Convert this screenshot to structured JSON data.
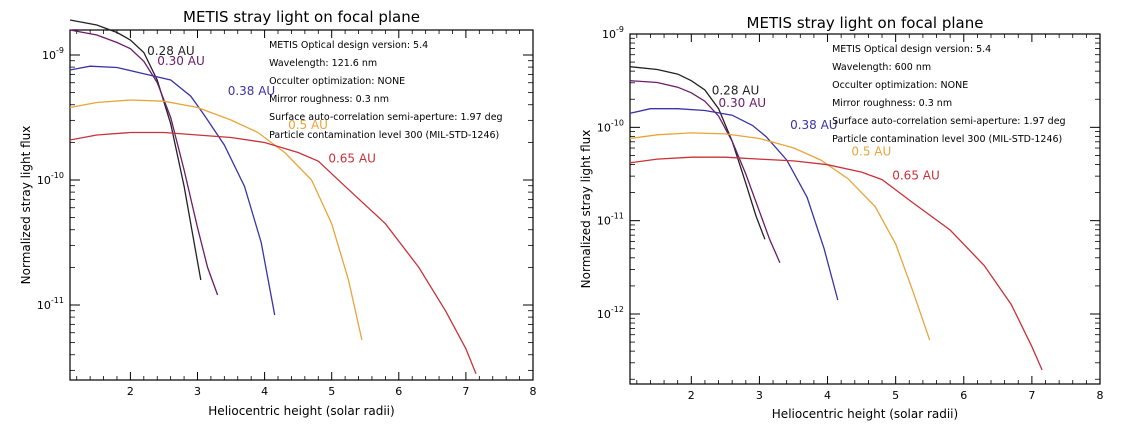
{
  "chart_data": [
    {
      "type": "line",
      "title": "METIS stray light on focal plane",
      "xlabel": "Heliocentric height (solar radii)",
      "ylabel": "Normalized stray light flux",
      "y_scale": "log",
      "xlim": [
        1.1,
        8
      ],
      "ylim_exp": [
        -11.6,
        -8.8
      ],
      "x_ticks": [
        "2",
        "3",
        "4",
        "5",
        "6",
        "7",
        "8"
      ],
      "y_ticks": [
        {
          "exp": -9,
          "mant": "10",
          "sup": "-9"
        },
        {
          "exp": -10,
          "mant": "10",
          "sup": "-10"
        },
        {
          "exp": -11,
          "mant": "10",
          "sup": "-11"
        }
      ],
      "annotations": [
        "METIS Optical design version: 5.4",
        "Wavelength: 121.6 nm",
        "Occulter optimization: NONE",
        "Mirror roughness: 0.3 nm",
        "Surface auto-correlation semi-aperture: 1.97 deg",
        "Particle contamination level 300 (MIL-STD-1246)"
      ],
      "series": [
        {
          "name": "0.28 AU",
          "color": "#222222",
          "label_at": [
            2.25,
            -9.0
          ],
          "points": [
            [
              1.1,
              -8.72
            ],
            [
              1.5,
              -8.76
            ],
            [
              1.8,
              -8.82
            ],
            [
              2.0,
              -8.88
            ],
            [
              2.2,
              -8.98
            ],
            [
              2.4,
              -9.2
            ],
            [
              2.6,
              -9.55
            ],
            [
              2.8,
              -10.05
            ],
            [
              2.95,
              -10.5
            ],
            [
              3.05,
              -10.8
            ]
          ]
        },
        {
          "name": "0.30 AU",
          "color": "#6a1b6a",
          "label_at": [
            2.4,
            -9.08
          ],
          "points": [
            [
              1.1,
              -8.8
            ],
            [
              1.5,
              -8.84
            ],
            [
              1.8,
              -8.9
            ],
            [
              2.0,
              -8.95
            ],
            [
              2.2,
              -9.05
            ],
            [
              2.4,
              -9.22
            ],
            [
              2.6,
              -9.5
            ],
            [
              2.8,
              -9.92
            ],
            [
              3.0,
              -10.38
            ],
            [
              3.15,
              -10.7
            ],
            [
              3.3,
              -10.92
            ]
          ]
        },
        {
          "name": "0.38 AU",
          "color": "#3a33a6",
          "label_at": [
            3.45,
            -9.32
          ],
          "points": [
            [
              1.1,
              -9.12
            ],
            [
              1.4,
              -9.09
            ],
            [
              1.8,
              -9.1
            ],
            [
              2.2,
              -9.15
            ],
            [
              2.6,
              -9.2
            ],
            [
              2.9,
              -9.33
            ],
            [
              3.1,
              -9.48
            ],
            [
              3.4,
              -9.72
            ],
            [
              3.7,
              -10.05
            ],
            [
              3.95,
              -10.5
            ],
            [
              4.15,
              -11.08
            ]
          ]
        },
        {
          "name": "0.5 AU",
          "color": "#e8a53a",
          "label_at": [
            4.35,
            -9.59
          ],
          "points": [
            [
              1.1,
              -9.42
            ],
            [
              1.5,
              -9.38
            ],
            [
              2.0,
              -9.36
            ],
            [
              2.5,
              -9.37
            ],
            [
              3.0,
              -9.42
            ],
            [
              3.5,
              -9.52
            ],
            [
              3.9,
              -9.62
            ],
            [
              4.3,
              -9.78
            ],
            [
              4.7,
              -10.0
            ],
            [
              5.0,
              -10.35
            ],
            [
              5.25,
              -10.8
            ],
            [
              5.45,
              -11.28
            ]
          ]
        },
        {
          "name": "0.65 AU",
          "color": "#c8323a",
          "label_at": [
            4.95,
            -9.86
          ],
          "points": [
            [
              1.1,
              -9.68
            ],
            [
              1.5,
              -9.64
            ],
            [
              2.0,
              -9.62
            ],
            [
              2.5,
              -9.62
            ],
            [
              3.0,
              -9.64
            ],
            [
              3.5,
              -9.66
            ],
            [
              4.0,
              -9.7
            ],
            [
              4.5,
              -9.78
            ],
            [
              4.8,
              -9.85
            ],
            [
              5.2,
              -10.05
            ],
            [
              5.8,
              -10.35
            ],
            [
              6.3,
              -10.7
            ],
            [
              6.7,
              -11.05
            ],
            [
              7.0,
              -11.35
            ],
            [
              7.15,
              -11.55
            ]
          ]
        }
      ]
    },
    {
      "type": "line",
      "title": "METIS stray light on focal plane",
      "xlabel": "Heliocentric height (solar radii)",
      "ylabel": "Normalized stray light flux",
      "y_scale": "log",
      "xlim": [
        1.1,
        8
      ],
      "ylim_exp": [
        -12.75,
        -9.0
      ],
      "x_ticks": [
        "2",
        "3",
        "4",
        "5",
        "6",
        "7",
        "8"
      ],
      "y_ticks": [
        {
          "exp": -9,
          "mant": "10",
          "sup": "-9"
        },
        {
          "exp": -10,
          "mant": "10",
          "sup": "-10"
        },
        {
          "exp": -11,
          "mant": "10",
          "sup": "-11"
        },
        {
          "exp": -12,
          "mant": "10",
          "sup": "-12"
        }
      ],
      "annotations": [
        "METIS Optical design version: 5.4",
        "Wavelength: 600 nm",
        "Occulter optimization: NONE",
        "Mirror roughness: 0.3 nm",
        "Surface auto-correlation semi-aperture: 1.97 deg",
        "Particle contamination level 300 (MIL-STD-1246)"
      ],
      "series": [
        {
          "name": "0.28 AU",
          "color": "#222222",
          "label_at": [
            2.3,
            -9.65
          ],
          "points": [
            [
              1.1,
              -9.35
            ],
            [
              1.5,
              -9.38
            ],
            [
              1.8,
              -9.43
            ],
            [
              2.0,
              -9.5
            ],
            [
              2.2,
              -9.6
            ],
            [
              2.4,
              -9.8
            ],
            [
              2.6,
              -10.15
            ],
            [
              2.8,
              -10.6
            ],
            [
              2.95,
              -10.95
            ],
            [
              3.08,
              -11.2
            ]
          ]
        },
        {
          "name": "0.30 AU",
          "color": "#6a1b6a",
          "label_at": [
            2.4,
            -9.78
          ],
          "points": [
            [
              1.1,
              -9.5
            ],
            [
              1.5,
              -9.52
            ],
            [
              1.8,
              -9.57
            ],
            [
              2.0,
              -9.63
            ],
            [
              2.2,
              -9.72
            ],
            [
              2.4,
              -9.88
            ],
            [
              2.6,
              -10.15
            ],
            [
              2.8,
              -10.5
            ],
            [
              3.0,
              -10.9
            ],
            [
              3.15,
              -11.2
            ],
            [
              3.3,
              -11.45
            ]
          ]
        },
        {
          "name": "0.38 AU",
          "color": "#3a33a6",
          "label_at": [
            3.45,
            -10.02
          ],
          "points": [
            [
              1.1,
              -9.85
            ],
            [
              1.4,
              -9.8
            ],
            [
              1.8,
              -9.8
            ],
            [
              2.2,
              -9.82
            ],
            [
              2.6,
              -9.87
            ],
            [
              2.9,
              -9.98
            ],
            [
              3.1,
              -10.1
            ],
            [
              3.4,
              -10.35
            ],
            [
              3.7,
              -10.75
            ],
            [
              3.95,
              -11.3
            ],
            [
              4.15,
              -11.85
            ]
          ]
        },
        {
          "name": "0.5 AU",
          "color": "#e8a53a",
          "label_at": [
            4.35,
            -10.3
          ],
          "points": [
            [
              1.1,
              -10.12
            ],
            [
              1.5,
              -10.08
            ],
            [
              2.0,
              -10.06
            ],
            [
              2.5,
              -10.07
            ],
            [
              3.0,
              -10.12
            ],
            [
              3.5,
              -10.22
            ],
            [
              3.9,
              -10.35
            ],
            [
              4.3,
              -10.55
            ],
            [
              4.7,
              -10.85
            ],
            [
              5.0,
              -11.25
            ],
            [
              5.25,
              -11.75
            ],
            [
              5.5,
              -12.28
            ]
          ]
        },
        {
          "name": "0.65 AU",
          "color": "#c8323a",
          "label_at": [
            4.95,
            -10.56
          ],
          "points": [
            [
              1.1,
              -10.38
            ],
            [
              1.5,
              -10.34
            ],
            [
              2.0,
              -10.32
            ],
            [
              2.5,
              -10.32
            ],
            [
              3.0,
              -10.34
            ],
            [
              3.5,
              -10.36
            ],
            [
              4.0,
              -10.4
            ],
            [
              4.5,
              -10.48
            ],
            [
              4.8,
              -10.56
            ],
            [
              5.2,
              -10.78
            ],
            [
              5.8,
              -11.1
            ],
            [
              6.3,
              -11.48
            ],
            [
              6.7,
              -11.9
            ],
            [
              7.0,
              -12.35
            ],
            [
              7.15,
              -12.6
            ]
          ]
        }
      ]
    }
  ]
}
